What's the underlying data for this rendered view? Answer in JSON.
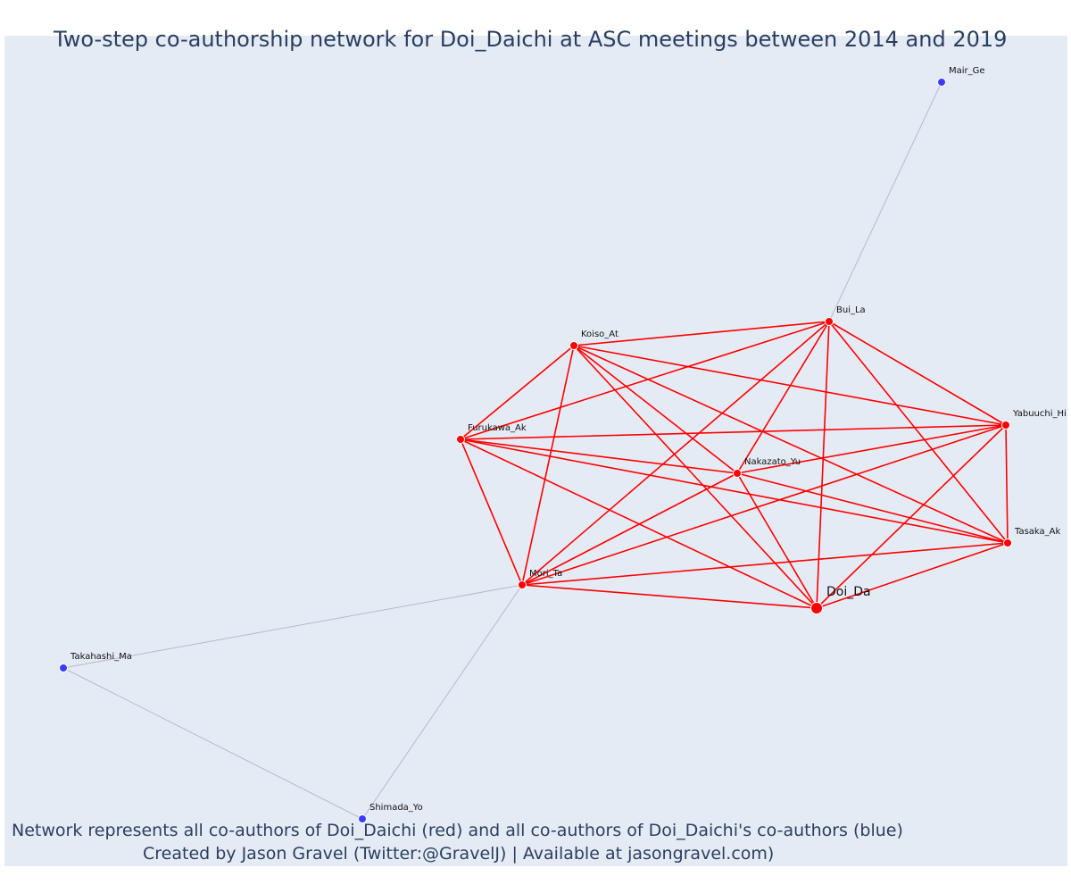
{
  "title": "Two-step co-authorship network for Doi_Daichi at ASC meetings between 2014 and 2019",
  "caption_line1": "Network represents all co-authors of Doi_Daichi (red) and all co-authors of Doi_Daichi's co-authors (blue)",
  "caption_line2": "Created by Jason Gravel (Twitter:@GravelJ) | Available at jasongravel.com)",
  "colors": {
    "coauthor": "#ff0000",
    "second_step": "#3b3bff",
    "second_step_edge": "#b8b8c8",
    "background": "#e5ebf5"
  },
  "nodes": [
    {
      "id": "Doi_Da",
      "label": "Doi_Da",
      "group": "center"
    },
    {
      "id": "Mori_Ta",
      "label": "Mori_Ta",
      "group": "coauthor"
    },
    {
      "id": "Furukawa_Ak",
      "label": "Furukawa_Ak",
      "group": "coauthor"
    },
    {
      "id": "Koiso_At",
      "label": "Koiso_At",
      "group": "coauthor"
    },
    {
      "id": "Bui_La",
      "label": "Bui_La",
      "group": "coauthor"
    },
    {
      "id": "Nakazato_Yu",
      "label": "Nakazato_Yu",
      "group": "coauthor"
    },
    {
      "id": "Yabuuchi_Hi",
      "label": "Yabuuchi_Hi",
      "group": "coauthor"
    },
    {
      "id": "Tasaka_Ak",
      "label": "Tasaka_Ak",
      "group": "coauthor"
    },
    {
      "id": "Mair_Ge",
      "label": "Mair_Ge",
      "group": "second_step"
    },
    {
      "id": "Takahashi_Ma",
      "label": "Takahashi_Ma",
      "group": "second_step"
    },
    {
      "id": "Shimada_Yo",
      "label": "Shimada_Yo",
      "group": "second_step"
    }
  ],
  "edges": [
    [
      "Koiso_At",
      "Bui_La"
    ],
    [
      "Koiso_At",
      "Furukawa_Ak"
    ],
    [
      "Koiso_At",
      "Mori_Ta"
    ],
    [
      "Koiso_At",
      "Nakazato_Yu"
    ],
    [
      "Koiso_At",
      "Yabuuchi_Hi"
    ],
    [
      "Koiso_At",
      "Tasaka_Ak"
    ],
    [
      "Koiso_At",
      "Doi_Da"
    ],
    [
      "Bui_La",
      "Furukawa_Ak"
    ],
    [
      "Bui_La",
      "Mori_Ta"
    ],
    [
      "Bui_La",
      "Nakazato_Yu"
    ],
    [
      "Bui_La",
      "Yabuuchi_Hi"
    ],
    [
      "Bui_La",
      "Tasaka_Ak"
    ],
    [
      "Bui_La",
      "Doi_Da"
    ],
    [
      "Furukawa_Ak",
      "Yabuuchi_Hi"
    ],
    [
      "Furukawa_Ak",
      "Nakazato_Yu"
    ],
    [
      "Furukawa_Ak",
      "Tasaka_Ak"
    ],
    [
      "Furukawa_Ak",
      "Mori_Ta"
    ],
    [
      "Furukawa_Ak",
      "Doi_Da"
    ],
    [
      "Nakazato_Yu",
      "Yabuuchi_Hi"
    ],
    [
      "Nakazato_Yu",
      "Tasaka_Ak"
    ],
    [
      "Nakazato_Yu",
      "Mori_Ta"
    ],
    [
      "Nakazato_Yu",
      "Doi_Da"
    ],
    [
      "Yabuuchi_Hi",
      "Tasaka_Ak"
    ],
    [
      "Yabuuchi_Hi",
      "Mori_Ta"
    ],
    [
      "Yabuuchi_Hi",
      "Doi_Da"
    ],
    [
      "Tasaka_Ak",
      "Mori_Ta"
    ],
    [
      "Tasaka_Ak",
      "Doi_Da"
    ],
    [
      "Mori_Ta",
      "Doi_Da"
    ],
    [
      "Bui_La",
      "Mair_Ge"
    ],
    [
      "Mori_Ta",
      "Takahashi_Ma"
    ],
    [
      "Mori_Ta",
      "Shimada_Yo"
    ],
    [
      "Takahashi_Ma",
      "Shimada_Yo"
    ]
  ]
}
